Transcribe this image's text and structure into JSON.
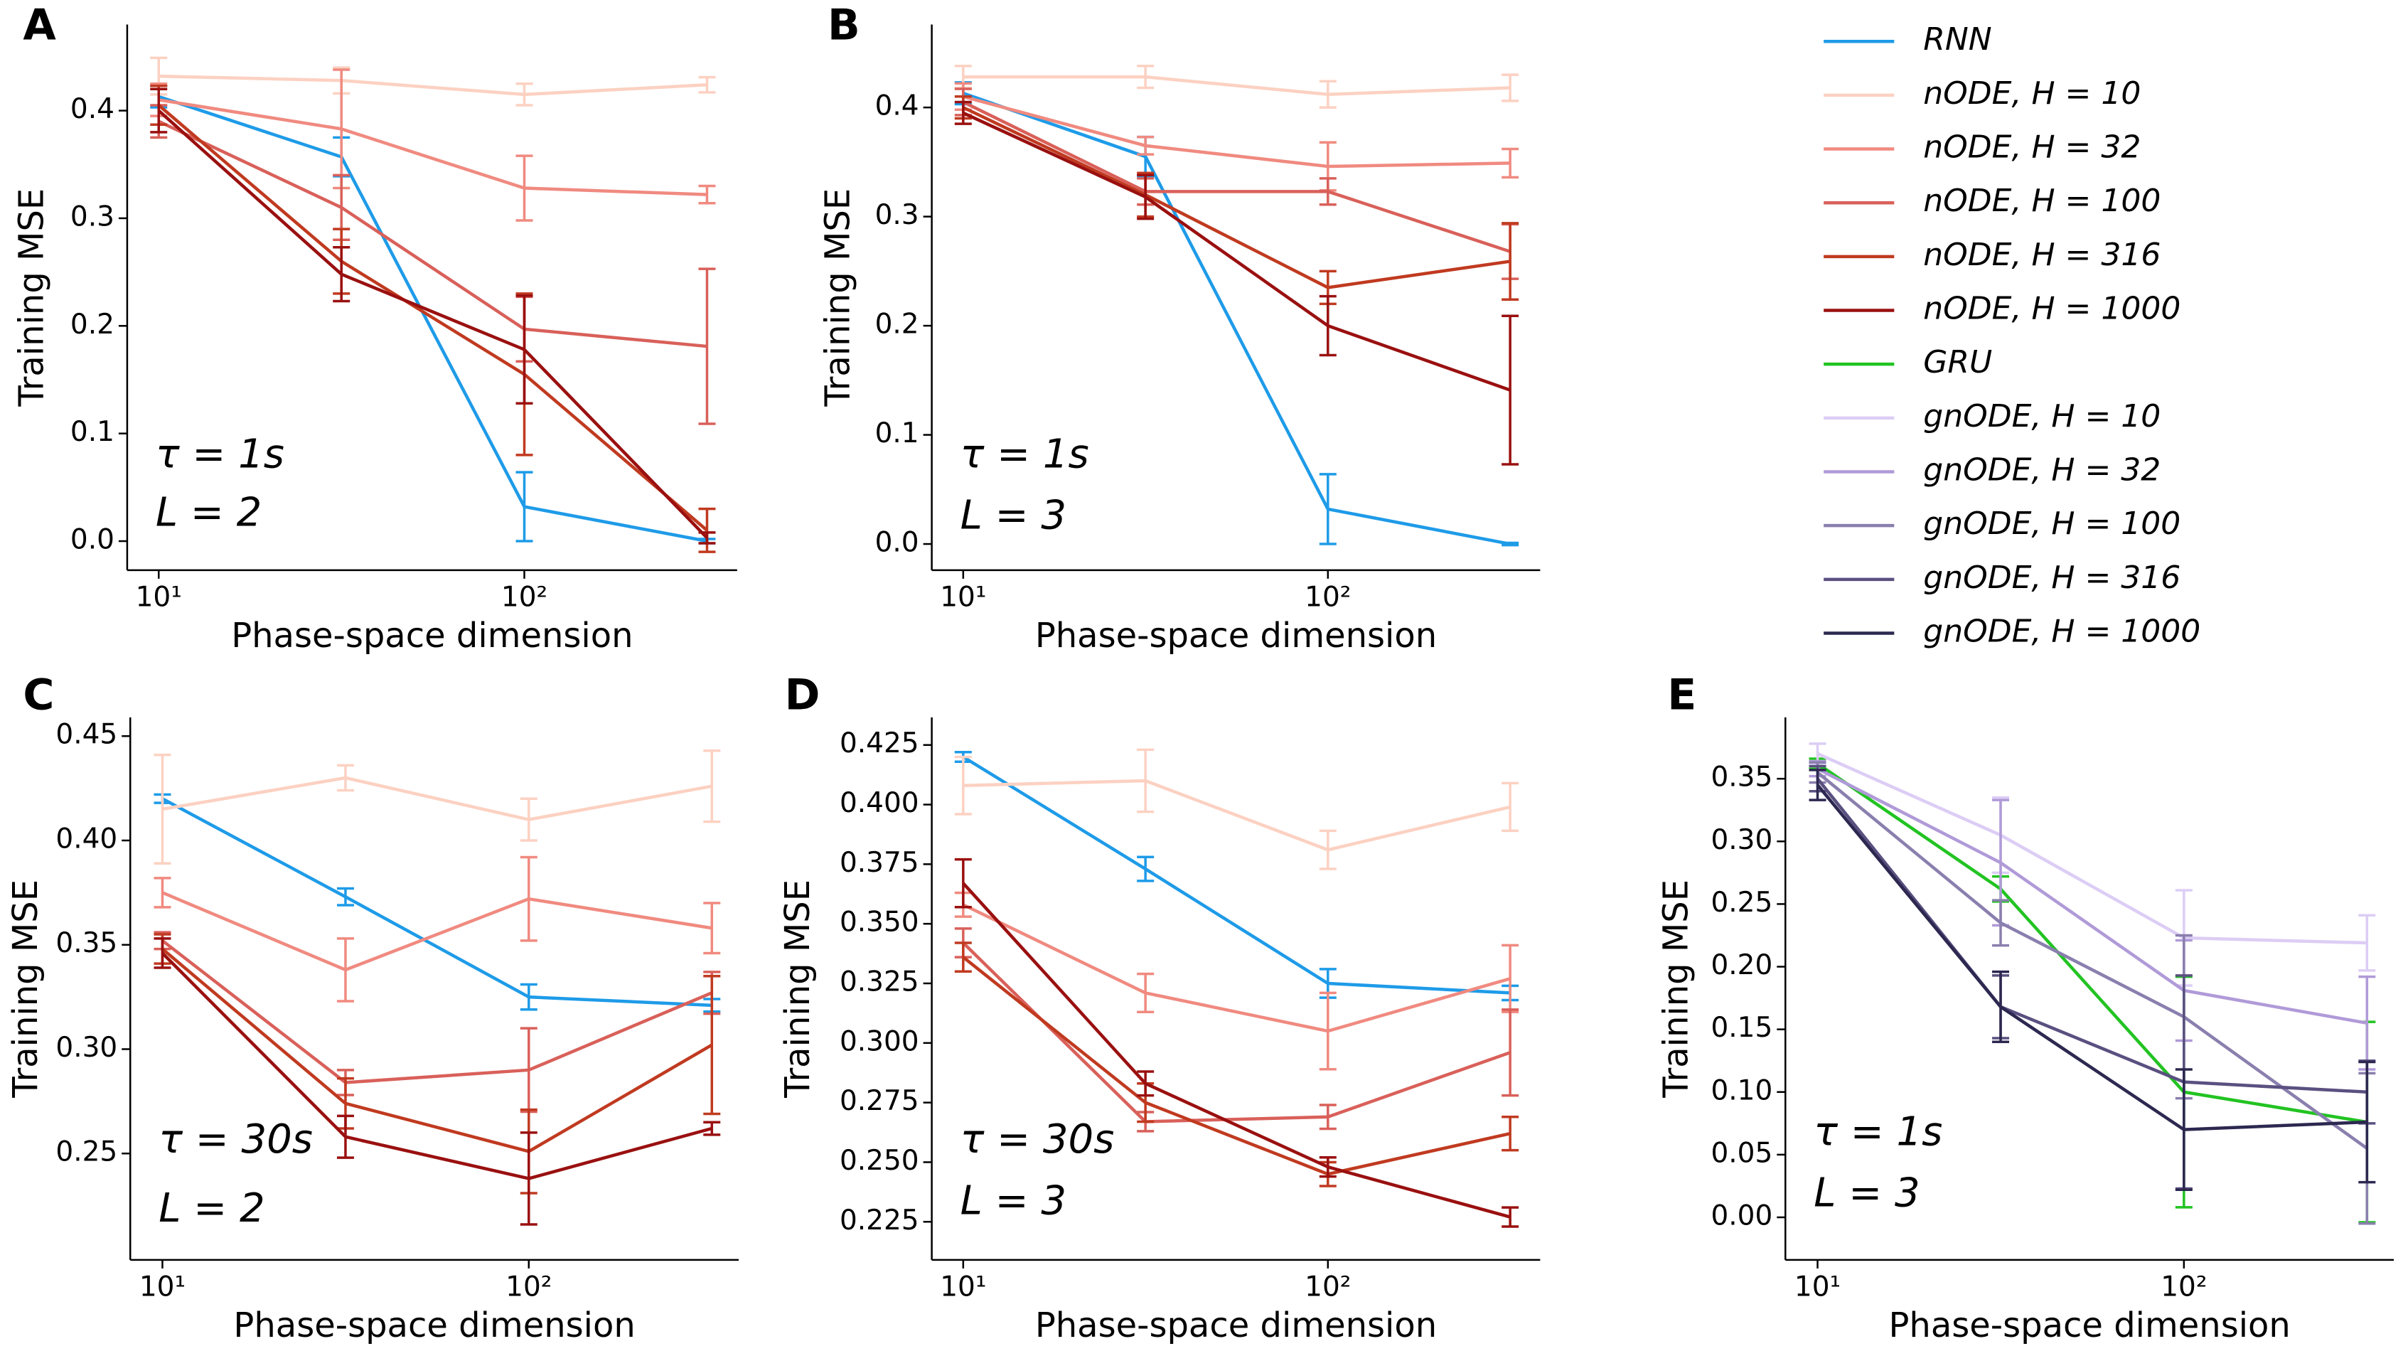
{
  "chart_data": [
    {
      "type": "line",
      "panel": "A",
      "xlabel": "Phase-space dimension",
      "ylabel": "Training MSE",
      "annotations": [
        "τ = 1s",
        "L = 2"
      ],
      "log_x": true,
      "x": [
        10,
        31.6,
        100,
        316
      ],
      "xlim": [
        8.2,
        382
      ],
      "xticks": [
        {
          "value": 10,
          "label": "10¹"
        },
        {
          "value": 100,
          "label": "10²"
        }
      ],
      "ylim": [
        -0.027,
        0.48
      ],
      "yticks": [
        {
          "value": 0,
          "label": "0.0"
        },
        0.1,
        0.2,
        0.3,
        0.4
      ],
      "series": [
        {
          "name": "RNN",
          "color": "#1e9be8",
          "values": [
            0.413,
            0.357,
            0.032,
            0.0
          ],
          "errors": [
            0.01,
            0.018,
            0.032,
            0.002
          ]
        },
        {
          "name": "nODE, H = 10",
          "color": "#fcd1c2",
          "values": [
            0.432,
            0.428,
            0.415,
            0.424
          ],
          "errors": [
            0.017,
            0.012,
            0.01,
            0.007
          ]
        },
        {
          "name": "nODE, H = 32",
          "color": "#f08a80",
          "values": [
            0.41,
            0.383,
            0.328,
            0.322
          ],
          "errors": [
            0.015,
            0.055,
            0.03,
            0.008
          ]
        },
        {
          "name": "nODE, H = 100",
          "color": "#d9605a",
          "values": [
            0.39,
            0.31,
            0.197,
            0.181
          ],
          "errors": [
            0.015,
            0.03,
            0.03,
            0.072
          ]
        },
        {
          "name": "nODE, H = 316",
          "color": "#c03a20",
          "values": [
            0.405,
            0.26,
            0.155,
            0.01
          ],
          "errors": [
            0.018,
            0.03,
            0.075,
            0.02
          ]
        },
        {
          "name": "nODE, H = 1000",
          "color": "#9a1010",
          "values": [
            0.4,
            0.248,
            0.178,
            0.003
          ],
          "errors": [
            0.02,
            0.025,
            0.05,
            0.005
          ]
        }
      ]
    },
    {
      "type": "line",
      "panel": "B",
      "xlabel": "Phase-space dimension",
      "ylabel": "Training MSE",
      "annotations": [
        "τ = 1s",
        "L = 3"
      ],
      "log_x": true,
      "x": [
        10,
        31.6,
        100,
        316
      ],
      "xlim": [
        8.2,
        382
      ],
      "xticks": [
        {
          "value": 10,
          "label": "10¹"
        },
        {
          "value": 100,
          "label": "10²"
        }
      ],
      "ylim": [
        -0.024,
        0.476
      ],
      "yticks": [
        {
          "value": 0,
          "label": "0.0"
        },
        0.1,
        0.2,
        0.3,
        0.4
      ],
      "series": [
        {
          "name": "RNN",
          "color": "#1e9be8",
          "values": [
            0.413,
            0.355,
            0.032,
            0.0
          ],
          "errors": [
            0.01,
            0.018,
            0.032,
            0.001
          ]
        },
        {
          "name": "nODE, H = 10",
          "color": "#fcd1c2",
          "values": [
            0.428,
            0.428,
            0.412,
            0.418
          ],
          "errors": [
            0.01,
            0.01,
            0.012,
            0.012
          ]
        },
        {
          "name": "nODE, H = 32",
          "color": "#f08a80",
          "values": [
            0.41,
            0.365,
            0.346,
            0.349
          ],
          "errors": [
            0.012,
            0.008,
            0.022,
            0.013
          ]
        },
        {
          "name": "nODE, H = 100",
          "color": "#d9605a",
          "values": [
            0.405,
            0.323,
            0.323,
            0.268
          ],
          "errors": [
            0.012,
            0.012,
            0.012,
            0.025
          ]
        },
        {
          "name": "nODE, H = 316",
          "color": "#c03a20",
          "values": [
            0.4,
            0.32,
            0.235,
            0.259
          ],
          "errors": [
            0.01,
            0.02,
            0.015,
            0.035
          ]
        },
        {
          "name": "nODE, H = 1000",
          "color": "#9a1010",
          "values": [
            0.395,
            0.318,
            0.2,
            0.141
          ],
          "errors": [
            0.01,
            0.02,
            0.027,
            0.068
          ]
        }
      ]
    },
    {
      "type": "line",
      "panel": "C",
      "xlabel": "Phase-space dimension",
      "ylabel": "Training MSE",
      "annotations": [
        "τ = 30s",
        "L = 2"
      ],
      "log_x": true,
      "x": [
        10,
        31.6,
        100,
        316
      ],
      "xlim": [
        8.17,
        374
      ],
      "xticks": [
        {
          "value": 10,
          "label": "10¹"
        },
        {
          "value": 100,
          "label": "10²"
        }
      ],
      "ylim": [
        0.199,
        0.459
      ],
      "yticks": [
        0.25,
        {
          "value": 0.3,
          "label": "0.30"
        },
        0.35,
        {
          "value": 0.4,
          "label": "0.40"
        },
        0.45
      ],
      "series": [
        {
          "name": "RNN",
          "color": "#1e9be8",
          "values": [
            0.42,
            0.373,
            0.325,
            0.321
          ],
          "errors": [
            0.002,
            0.004,
            0.006,
            0.003
          ]
        },
        {
          "name": "nODE, H = 10",
          "color": "#fcd1c2",
          "values": [
            0.415,
            0.43,
            0.41,
            0.426
          ],
          "errors": [
            0.026,
            0.006,
            0.01,
            0.017
          ]
        },
        {
          "name": "nODE, H = 32",
          "color": "#f08a80",
          "values": [
            0.375,
            0.338,
            0.372,
            0.358
          ],
          "errors": [
            0.007,
            0.015,
            0.02,
            0.012
          ]
        },
        {
          "name": "nODE, H = 100",
          "color": "#d9605a",
          "values": [
            0.352,
            0.284,
            0.29,
            0.327
          ],
          "errors": [
            0.004,
            0.006,
            0.02,
            0.01
          ]
        },
        {
          "name": "nODE, H = 316",
          "color": "#c03a20",
          "values": [
            0.348,
            0.274,
            0.251,
            0.302
          ],
          "errors": [
            0.007,
            0.012,
            0.02,
            0.033
          ]
        },
        {
          "name": "nODE, H = 1000",
          "color": "#9a1010",
          "values": [
            0.346,
            0.258,
            0.238,
            0.262
          ],
          "errors": [
            0.007,
            0.01,
            0.022,
            0.003
          ]
        }
      ]
    },
    {
      "type": "line",
      "panel": "D",
      "xlabel": "Phase-space dimension",
      "ylabel": "Training MSE",
      "annotations": [
        "τ = 30s",
        "L = 3"
      ],
      "log_x": true,
      "x": [
        10,
        31.6,
        100,
        316
      ],
      "xlim": [
        8.2,
        382
      ],
      "xticks": [
        {
          "value": 10,
          "label": "10¹"
        },
        {
          "value": 100,
          "label": "10²"
        }
      ],
      "ylim": [
        0.209,
        0.4366
      ],
      "yticks": [
        0.225,
        {
          "value": 0.25,
          "label": "0.250"
        },
        0.275,
        {
          "value": 0.3,
          "label": "0.300"
        },
        0.325,
        {
          "value": 0.35,
          "label": "0.350"
        },
        0.375,
        {
          "value": 0.4,
          "label": "0.400"
        },
        0.425
      ],
      "series": [
        {
          "name": "RNN",
          "color": "#1e9be8",
          "values": [
            0.42,
            0.373,
            0.325,
            0.321
          ],
          "errors": [
            0.002,
            0.005,
            0.006,
            0.003
          ]
        },
        {
          "name": "nODE, H = 10",
          "color": "#fcd1c2",
          "values": [
            0.408,
            0.41,
            0.381,
            0.399
          ],
          "errors": [
            0.012,
            0.013,
            0.008,
            0.01
          ]
        },
        {
          "name": "nODE, H = 32",
          "color": "#f08a80",
          "values": [
            0.358,
            0.321,
            0.305,
            0.327
          ],
          "errors": [
            0.005,
            0.008,
            0.016,
            0.014
          ]
        },
        {
          "name": "nODE, H = 100",
          "color": "#d9605a",
          "values": [
            0.342,
            0.267,
            0.269,
            0.296
          ],
          "errors": [
            0.006,
            0.004,
            0.005,
            0.018
          ]
        },
        {
          "name": "nODE, H = 316",
          "color": "#c03a20",
          "values": [
            0.336,
            0.275,
            0.245,
            0.262
          ],
          "errors": [
            0.006,
            0.008,
            0.005,
            0.007
          ]
        },
        {
          "name": "nODE, H = 1000",
          "color": "#9a1010",
          "values": [
            0.367,
            0.283,
            0.248,
            0.227
          ],
          "errors": [
            0.01,
            0.005,
            0.004,
            0.004
          ]
        }
      ]
    },
    {
      "type": "line",
      "panel": "E",
      "xlabel": "Phase-space dimension",
      "ylabel": "Training MSE",
      "annotations": [
        "τ = 1s",
        "L = 3"
      ],
      "log_x": true,
      "x": [
        10,
        31.6,
        100,
        316
      ],
      "xlim": [
        8.17,
        374
      ],
      "xticks": [
        {
          "value": 10,
          "label": "10¹"
        },
        {
          "value": 100,
          "label": "10²"
        }
      ],
      "ylim": [
        -0.034,
        0.399
      ],
      "yticks": [
        {
          "value": 0,
          "label": "0.00"
        },
        0.05,
        {
          "value": 0.1,
          "label": "0.10"
        },
        0.15,
        {
          "value": 0.2,
          "label": "0.20"
        },
        0.25,
        {
          "value": 0.3,
          "label": "0.30"
        },
        0.35
      ],
      "series": [
        {
          "name": "GRU",
          "color": "#22c322",
          "values": [
            0.362,
            0.262,
            0.1,
            0.076
          ],
          "errors": [
            0.004,
            0.01,
            0.092,
            0.08
          ]
        },
        {
          "name": "gnODE, H = 10",
          "color": "#dccdf5",
          "values": [
            0.37,
            0.305,
            0.223,
            0.219
          ],
          "errors": [
            0.008,
            0.03,
            0.038,
            0.022
          ]
        },
        {
          "name": "gnODE, H = 32",
          "color": "#b09ad8",
          "values": [
            0.358,
            0.283,
            0.181,
            0.155
          ],
          "errors": [
            0.006,
            0.05,
            0.04,
            0.037
          ]
        },
        {
          "name": "gnODE, H = 100",
          "color": "#8a7fae",
          "values": [
            0.355,
            0.235,
            0.16,
            0.055
          ],
          "errors": [
            0.008,
            0.018,
            0.065,
            0.06
          ]
        },
        {
          "name": "gnODE, H = 316",
          "color": "#5a5080",
          "values": [
            0.35,
            0.168,
            0.108,
            0.1
          ],
          "errors": [
            0.01,
            0.025,
            0.085,
            0.025
          ]
        },
        {
          "name": "gnODE, H = 1000",
          "color": "#2c2850",
          "values": [
            0.345,
            0.168,
            0.07,
            0.076
          ],
          "errors": [
            0.012,
            0.028,
            0.048,
            0.048
          ]
        }
      ]
    }
  ]
}
